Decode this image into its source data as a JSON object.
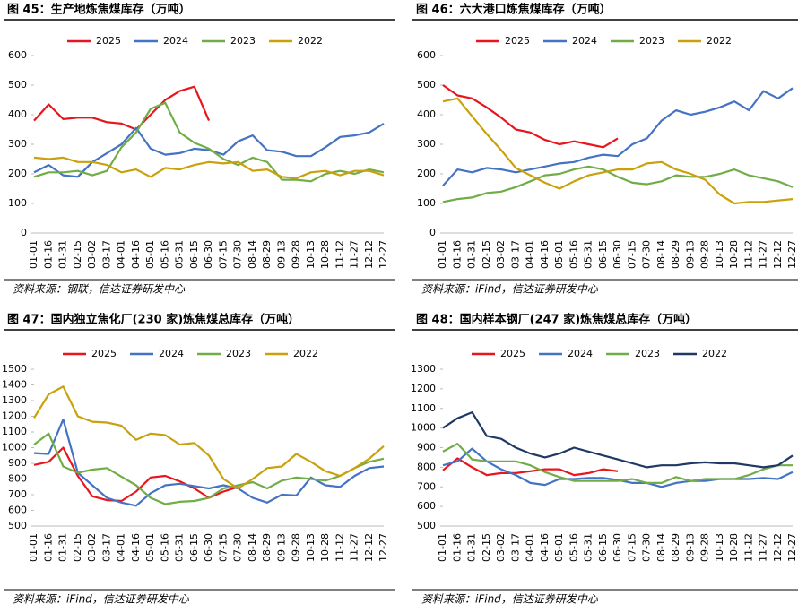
{
  "chart_data": [
    {
      "type": "line",
      "title": "图 45：生产地炼焦煤库存（万吨）",
      "source": "资料来源：钢联，信达证券研发中心",
      "categories": [
        "01-01",
        "01-16",
        "01-31",
        "02-15",
        "03-02",
        "03-17",
        "04-01",
        "04-16",
        "05-01",
        "05-16",
        "05-31",
        "06-15",
        "06-30",
        "07-15",
        "07-30",
        "08-14",
        "08-29",
        "09-13",
        "09-28",
        "10-13",
        "10-28",
        "11-12",
        "11-27",
        "12-12",
        "12-27"
      ],
      "ylim": [
        0,
        600
      ],
      "yticks": [
        0,
        100,
        200,
        300,
        400,
        500,
        600
      ],
      "series": [
        {
          "name": "2025",
          "color": "#e8161c",
          "values": [
            380,
            435,
            385,
            390,
            390,
            375,
            370,
            350,
            400,
            450,
            480,
            495,
            380,
            null,
            null,
            null,
            null,
            null,
            null,
            null,
            null,
            null,
            null,
            null,
            null
          ]
        },
        {
          "name": "2024",
          "color": "#4472c4",
          "values": [
            205,
            230,
            195,
            190,
            240,
            270,
            300,
            355,
            285,
            265,
            270,
            285,
            280,
            265,
            310,
            330,
            280,
            275,
            260,
            260,
            290,
            325,
            330,
            340,
            370
          ]
        },
        {
          "name": "2023",
          "color": "#70ad47",
          "values": [
            190,
            205,
            205,
            210,
            195,
            210,
            290,
            340,
            420,
            440,
            340,
            305,
            285,
            250,
            230,
            255,
            240,
            180,
            180,
            175,
            200,
            210,
            200,
            215,
            205
          ]
        },
        {
          "name": "2022",
          "color": "#c9a10c",
          "values": [
            255,
            250,
            255,
            240,
            240,
            230,
            205,
            215,
            190,
            220,
            215,
            230,
            240,
            235,
            240,
            210,
            215,
            190,
            185,
            205,
            210,
            195,
            210,
            210,
            195
          ]
        }
      ]
    },
    {
      "type": "line",
      "title": "图 46：六大港口炼焦煤库存（万吨）",
      "source": "资料来源：iFind，信达证券研发中心",
      "categories": [
        "01-01",
        "01-16",
        "01-31",
        "02-15",
        "03-02",
        "03-17",
        "04-01",
        "04-16",
        "05-01",
        "05-16",
        "05-31",
        "06-15",
        "06-30",
        "07-15",
        "07-30",
        "08-14",
        "08-29",
        "09-13",
        "09-28",
        "10-13",
        "10-28",
        "11-12",
        "11-27",
        "12-12",
        "12-27"
      ],
      "ylim": [
        0,
        600
      ],
      "yticks": [
        0,
        100,
        200,
        300,
        400,
        500,
        600
      ],
      "series": [
        {
          "name": "2025",
          "color": "#e8161c",
          "values": [
            500,
            465,
            455,
            425,
            390,
            350,
            340,
            315,
            300,
            310,
            300,
            290,
            320,
            null,
            null,
            null,
            null,
            null,
            null,
            null,
            null,
            null,
            null,
            null,
            null
          ]
        },
        {
          "name": "2024",
          "color": "#4472c4",
          "values": [
            160,
            215,
            205,
            220,
            215,
            205,
            215,
            225,
            235,
            240,
            255,
            265,
            260,
            300,
            320,
            380,
            415,
            400,
            410,
            425,
            445,
            415,
            480,
            455,
            490
          ]
        },
        {
          "name": "2023",
          "color": "#70ad47",
          "values": [
            105,
            115,
            120,
            135,
            140,
            155,
            175,
            195,
            200,
            215,
            225,
            215,
            190,
            170,
            165,
            175,
            195,
            190,
            190,
            200,
            215,
            195,
            185,
            175,
            155
          ]
        },
        {
          "name": "2022",
          "color": "#c9a10c",
          "values": [
            445,
            455,
            395,
            335,
            280,
            220,
            195,
            170,
            150,
            175,
            195,
            205,
            215,
            215,
            235,
            240,
            215,
            200,
            180,
            130,
            100,
            105,
            105,
            110,
            115
          ]
        }
      ]
    },
    {
      "type": "line",
      "title": "图 47：国内独立焦化厂(230 家)炼焦煤总库存（万吨）",
      "source": "资料来源：iFind，信达证券研发中心",
      "categories": [
        "01-01",
        "01-16",
        "01-31",
        "02-15",
        "03-02",
        "03-17",
        "04-01",
        "04-16",
        "05-01",
        "05-16",
        "05-31",
        "06-15",
        "06-30",
        "07-15",
        "07-30",
        "08-14",
        "08-29",
        "09-13",
        "09-28",
        "10-13",
        "10-28",
        "11-12",
        "11-27",
        "12-12",
        "12-27"
      ],
      "ylim": [
        500,
        1500
      ],
      "yticks": [
        500,
        600,
        700,
        800,
        900,
        1000,
        1100,
        1200,
        1300,
        1400,
        1500
      ],
      "series": [
        {
          "name": "2025",
          "color": "#e8161c",
          "values": [
            890,
            910,
            1000,
            820,
            690,
            665,
            660,
            720,
            810,
            820,
            785,
            740,
            680,
            720,
            750,
            null,
            null,
            null,
            null,
            null,
            null,
            null,
            null,
            null,
            null
          ]
        },
        {
          "name": "2024",
          "color": "#4472c4",
          "values": [
            965,
            960,
            1180,
            840,
            760,
            680,
            650,
            630,
            710,
            760,
            770,
            755,
            740,
            760,
            740,
            680,
            650,
            700,
            695,
            810,
            760,
            750,
            820,
            870,
            880
          ]
        },
        {
          "name": "2023",
          "color": "#70ad47",
          "values": [
            1020,
            1090,
            880,
            840,
            860,
            870,
            815,
            760,
            680,
            640,
            655,
            660,
            680,
            740,
            760,
            780,
            740,
            790,
            810,
            800,
            790,
            820,
            870,
            910,
            930
          ]
        },
        {
          "name": "2022",
          "color": "#c9a10c",
          "values": [
            1190,
            1340,
            1390,
            1200,
            1165,
            1160,
            1140,
            1050,
            1090,
            1080,
            1020,
            1030,
            950,
            800,
            740,
            800,
            870,
            880,
            960,
            910,
            850,
            820,
            870,
            930,
            1010
          ]
        }
      ]
    },
    {
      "type": "line",
      "title": "图 48：国内样本钢厂(247 家)炼焦煤总库存（万吨）",
      "source": "资料来源：iFind，信达证券研发中心",
      "categories": [
        "01-01",
        "01-16",
        "01-31",
        "02-15",
        "03-02",
        "03-17",
        "04-01",
        "04-16",
        "05-01",
        "05-16",
        "05-31",
        "06-15",
        "06-30",
        "07-15",
        "07-30",
        "08-14",
        "08-29",
        "09-13",
        "09-28",
        "10-13",
        "10-28",
        "11-12",
        "11-27",
        "12-12",
        "12-27"
      ],
      "ylim": [
        500,
        1300
      ],
      "yticks": [
        500,
        600,
        700,
        800,
        900,
        1000,
        1100,
        1200,
        1300
      ],
      "series": [
        {
          "name": "2025",
          "color": "#e8161c",
          "values": [
            785,
            845,
            800,
            760,
            770,
            770,
            780,
            790,
            790,
            760,
            770,
            790,
            780,
            null,
            null,
            null,
            null,
            null,
            null,
            null,
            null,
            null,
            null,
            null,
            null
          ]
        },
        {
          "name": "2024",
          "color": "#4472c4",
          "values": [
            810,
            830,
            895,
            830,
            790,
            760,
            720,
            710,
            740,
            740,
            745,
            745,
            735,
            720,
            720,
            700,
            720,
            730,
            730,
            740,
            740,
            740,
            745,
            740,
            775
          ]
        },
        {
          "name": "2023",
          "color": "#70ad47",
          "values": [
            880,
            920,
            840,
            830,
            830,
            830,
            810,
            775,
            750,
            730,
            730,
            730,
            730,
            740,
            720,
            720,
            750,
            730,
            740,
            740,
            740,
            760,
            790,
            810,
            810
          ]
        },
        {
          "name": "2022",
          "color": "#1f3864",
          "values": [
            1000,
            1050,
            1080,
            960,
            945,
            900,
            870,
            850,
            870,
            900,
            880,
            860,
            840,
            820,
            800,
            810,
            810,
            820,
            825,
            820,
            820,
            810,
            800,
            810,
            860
          ]
        }
      ]
    }
  ]
}
